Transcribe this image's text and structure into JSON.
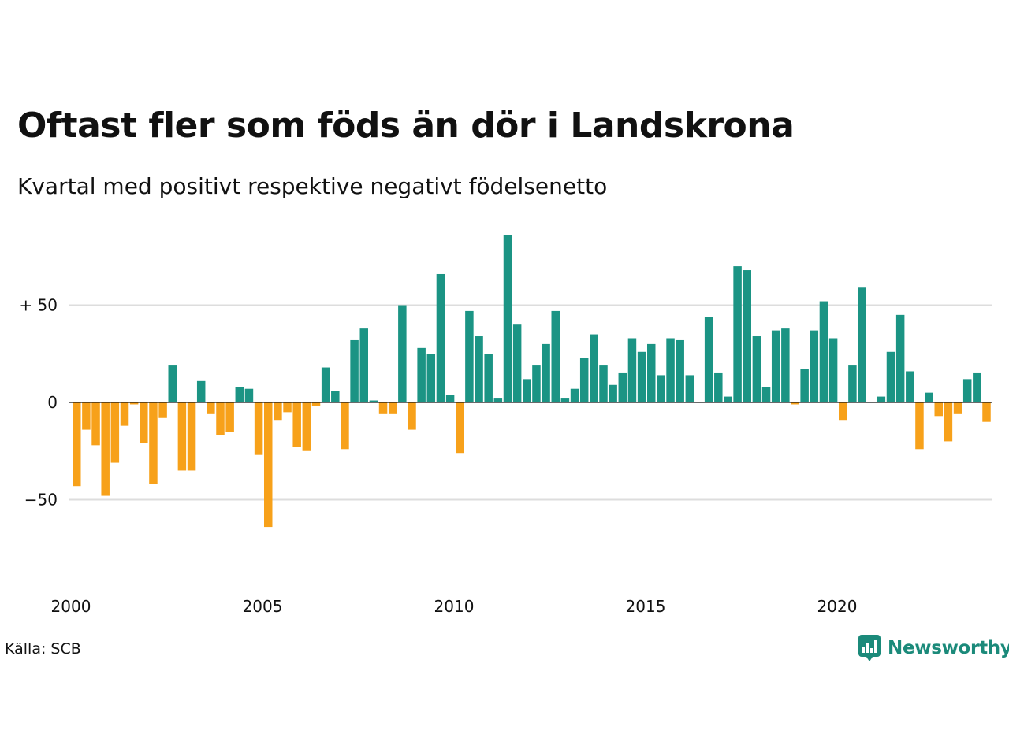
{
  "chart_data": {
    "type": "bar",
    "title": "Oftast fler som föds än dör i Landskrona",
    "subtitle": "Kvartal med positivt respektive negativt födelsenetto",
    "source": "Källa: SCB",
    "brand": "Newsworthy",
    "x_start": 2000,
    "x_step": 0.25,
    "ylim": [
      -70,
      90
    ],
    "y_ticks": [
      50,
      0,
      -50
    ],
    "y_tick_labels": [
      "+ 50",
      "0",
      "−50"
    ],
    "x_ticks": [
      2000,
      2005,
      2010,
      2015,
      2020
    ],
    "x_tick_labels": [
      "2000",
      "2005",
      "2010",
      "2015",
      "2020"
    ],
    "grid": true,
    "colors": {
      "positive": "#1b9484",
      "negative": "#f7a11a",
      "grid": "#dddddd",
      "zero_line": "#111111"
    },
    "values": [
      -43,
      -14,
      -22,
      -48,
      -31,
      -12,
      -1,
      -21,
      -42,
      -8,
      19,
      -35,
      -35,
      11,
      -6,
      -17,
      -15,
      8,
      7,
      -27,
      -64,
      -9,
      -5,
      -23,
      -25,
      -2,
      18,
      6,
      -24,
      32,
      38,
      1,
      -6,
      -6,
      50,
      -14,
      28,
      25,
      66,
      4,
      -26,
      47,
      34,
      25,
      2,
      86,
      40,
      12,
      19,
      30,
      47,
      2,
      7,
      23,
      35,
      19,
      9,
      15,
      33,
      26,
      30,
      14,
      33,
      32,
      14,
      0,
      44,
      15,
      3,
      70,
      68,
      34,
      8,
      37,
      38,
      -1,
      17,
      37,
      52,
      33,
      -9,
      19,
      59,
      0,
      3,
      26,
      45,
      16,
      -24,
      5,
      -7,
      -20,
      -6,
      12,
      15,
      -10
    ]
  }
}
